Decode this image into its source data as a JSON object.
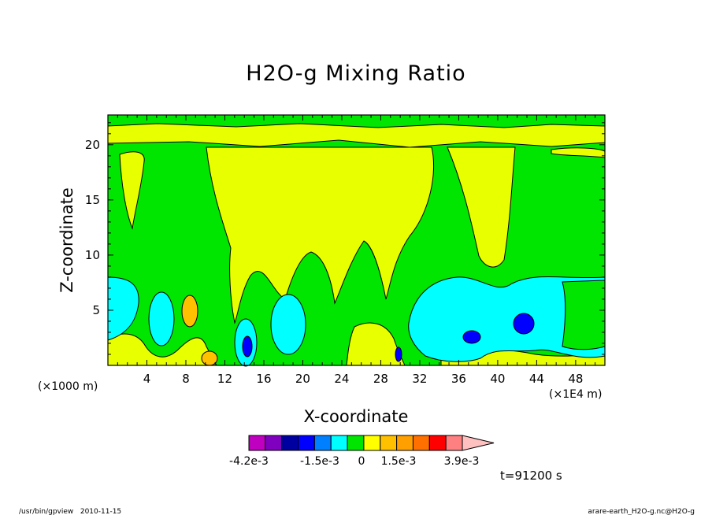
{
  "chart_data": {
    "type": "heatmap",
    "title": "H2O-g Mixing Ratio",
    "xlabel": "X-coordinate",
    "ylabel": "Z-coordinate",
    "x_unit": "(×1E4 m)",
    "y_unit": "(×1000 m)",
    "x_ticks": [
      "4",
      "8",
      "12",
      "16",
      "20",
      "24",
      "28",
      "32",
      "36",
      "40",
      "44",
      "48"
    ],
    "y_ticks": [
      "5",
      "10",
      "15",
      "20"
    ],
    "xlim": [
      0,
      51
    ],
    "ylim": [
      0,
      22.7
    ],
    "colorbar": {
      "colors": [
        "#c000c0",
        "#8000c0",
        "#0000a0",
        "#0000ff",
        "#0080ff",
        "#00ffff",
        "#00e600",
        "#ffff00",
        "#ffc000",
        "#ffa000",
        "#ff7000",
        "#ff0000",
        "#ff8080",
        "#ffc0c0"
      ],
      "labels": [
        "-4.2e-3",
        "-1.5e-3",
        "0",
        "1.5e-3",
        "3.9e-3"
      ]
    },
    "time_label": "t=91200 s",
    "footer_left": "/usr/bin/gpview   2010-11-15",
    "footer_right": "arare-earth_H2O-g.nc@H2O-g"
  }
}
